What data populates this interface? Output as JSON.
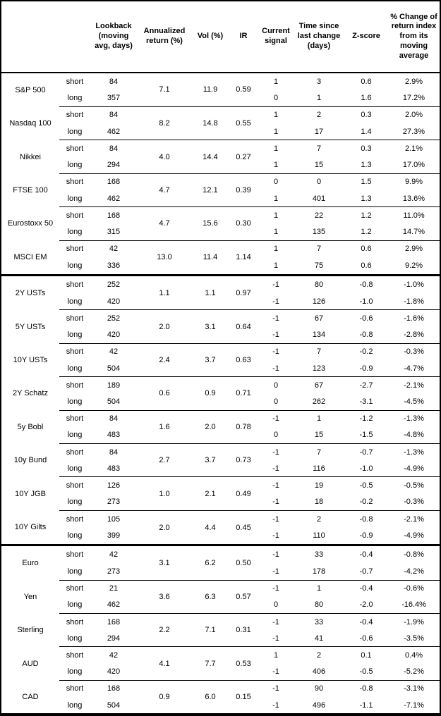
{
  "colors": {
    "border": "#000000",
    "text": "#000000",
    "background": "#ffffff"
  },
  "table": {
    "headers": {
      "asset": "",
      "side": "",
      "lookback": "Lookback\n(moving\navg, days)",
      "annualized_return": "Annualized\nreturn (%)",
      "vol": "Vol (%)",
      "ir": "IR",
      "current_signal": "Current\nsignal",
      "time_since": "Time since\nlast change\n(days)",
      "zscore": "Z-score",
      "pct_change": "% Change of\nreturn index\nfrom its\nmoving\naverage"
    },
    "sections": [
      {
        "groups": [
          {
            "asset": "S&P 500",
            "annualized_return": "7.1",
            "vol": "11.9",
            "ir": "0.59",
            "rows": [
              {
                "side": "short",
                "lookback": "84",
                "signal": "1",
                "time": "3",
                "zscore": "0.6",
                "pct": "2.9%"
              },
              {
                "side": "long",
                "lookback": "357",
                "signal": "0",
                "time": "1",
                "zscore": "1.6",
                "pct": "17.2%"
              }
            ]
          },
          {
            "asset": "Nasdaq 100",
            "annualized_return": "8.2",
            "vol": "14.8",
            "ir": "0.55",
            "rows": [
              {
                "side": "short",
                "lookback": "84",
                "signal": "1",
                "time": "2",
                "zscore": "0.3",
                "pct": "2.0%"
              },
              {
                "side": "long",
                "lookback": "462",
                "signal": "1",
                "time": "17",
                "zscore": "1.4",
                "pct": "27.3%"
              }
            ]
          },
          {
            "asset": "Nikkei",
            "annualized_return": "4.0",
            "vol": "14.4",
            "ir": "0.27",
            "rows": [
              {
                "side": "short",
                "lookback": "84",
                "signal": "1",
                "time": "7",
                "zscore": "0.3",
                "pct": "2.1%"
              },
              {
                "side": "long",
                "lookback": "294",
                "signal": "1",
                "time": "15",
                "zscore": "1.3",
                "pct": "17.0%"
              }
            ]
          },
          {
            "asset": "FTSE 100",
            "annualized_return": "4.7",
            "vol": "12.1",
            "ir": "0.39",
            "rows": [
              {
                "side": "short",
                "lookback": "168",
                "signal": "0",
                "time": "0",
                "zscore": "1.5",
                "pct": "9.9%"
              },
              {
                "side": "long",
                "lookback": "462",
                "signal": "1",
                "time": "401",
                "zscore": "1.3",
                "pct": "13.6%"
              }
            ]
          },
          {
            "asset": "Eurostoxx 50",
            "annualized_return": "4.7",
            "vol": "15.6",
            "ir": "0.30",
            "rows": [
              {
                "side": "short",
                "lookback": "168",
                "signal": "1",
                "time": "22",
                "zscore": "1.2",
                "pct": "11.0%"
              },
              {
                "side": "long",
                "lookback": "315",
                "signal": "1",
                "time": "135",
                "zscore": "1.2",
                "pct": "14.7%"
              }
            ]
          },
          {
            "asset": "MSCI EM",
            "annualized_return": "13.0",
            "vol": "11.4",
            "ir": "1.14",
            "rows": [
              {
                "side": "short",
                "lookback": "42",
                "signal": "1",
                "time": "7",
                "zscore": "0.6",
                "pct": "2.9%"
              },
              {
                "side": "long",
                "lookback": "336",
                "signal": "1",
                "time": "75",
                "zscore": "0.6",
                "pct": "9.2%"
              }
            ]
          }
        ]
      },
      {
        "groups": [
          {
            "asset": "2Y USTs",
            "annualized_return": "1.1",
            "vol": "1.1",
            "ir": "0.97",
            "rows": [
              {
                "side": "short",
                "lookback": "252",
                "signal": "-1",
                "time": "80",
                "zscore": "-0.8",
                "pct": "-1.0%"
              },
              {
                "side": "long",
                "lookback": "420",
                "signal": "-1",
                "time": "126",
                "zscore": "-1.0",
                "pct": "-1.8%"
              }
            ]
          },
          {
            "asset": "5Y USTs",
            "annualized_return": "2.0",
            "vol": "3.1",
            "ir": "0.64",
            "rows": [
              {
                "side": "short",
                "lookback": "252",
                "signal": "-1",
                "time": "67",
                "zscore": "-0.6",
                "pct": "-1.6%"
              },
              {
                "side": "long",
                "lookback": "420",
                "signal": "-1",
                "time": "134",
                "zscore": "-0.8",
                "pct": "-2.8%"
              }
            ]
          },
          {
            "asset": "10Y USTs",
            "annualized_return": "2.4",
            "vol": "3.7",
            "ir": "0.63",
            "rows": [
              {
                "side": "short",
                "lookback": "42",
                "signal": "-1",
                "time": "7",
                "zscore": "-0.2",
                "pct": "-0.3%"
              },
              {
                "side": "long",
                "lookback": "504",
                "signal": "-1",
                "time": "123",
                "zscore": "-0.9",
                "pct": "-4.7%"
              }
            ]
          },
          {
            "asset": "2Y Schatz",
            "annualized_return": "0.6",
            "vol": "0.9",
            "ir": "0.71",
            "rows": [
              {
                "side": "short",
                "lookback": "189",
                "signal": "0",
                "time": "67",
                "zscore": "-2.7",
                "pct": "-2.1%"
              },
              {
                "side": "long",
                "lookback": "504",
                "signal": "0",
                "time": "262",
                "zscore": "-3.1",
                "pct": "-4.5%"
              }
            ]
          },
          {
            "asset": "5y Bobl",
            "annualized_return": "1.6",
            "vol": "2.0",
            "ir": "0.78",
            "rows": [
              {
                "side": "short",
                "lookback": "84",
                "signal": "-1",
                "time": "1",
                "zscore": "-1.2",
                "pct": "-1.3%"
              },
              {
                "side": "long",
                "lookback": "483",
                "signal": "0",
                "time": "15",
                "zscore": "-1.5",
                "pct": "-4.8%"
              }
            ]
          },
          {
            "asset": "10y Bund",
            "annualized_return": "2.7",
            "vol": "3.7",
            "ir": "0.73",
            "rows": [
              {
                "side": "short",
                "lookback": "84",
                "signal": "-1",
                "time": "7",
                "zscore": "-0.7",
                "pct": "-1.3%"
              },
              {
                "side": "long",
                "lookback": "483",
                "signal": "-1",
                "time": "116",
                "zscore": "-1.0",
                "pct": "-4.9%"
              }
            ]
          },
          {
            "asset": "10Y JGB",
            "annualized_return": "1.0",
            "vol": "2.1",
            "ir": "0.49",
            "rows": [
              {
                "side": "short",
                "lookback": "126",
                "signal": "-1",
                "time": "19",
                "zscore": "-0.5",
                "pct": "-0.5%"
              },
              {
                "side": "long",
                "lookback": "273",
                "signal": "-1",
                "time": "18",
                "zscore": "-0.2",
                "pct": "-0.3%"
              }
            ]
          },
          {
            "asset": "10Y Gilts",
            "annualized_return": "2.0",
            "vol": "4.4",
            "ir": "0.45",
            "rows": [
              {
                "side": "short",
                "lookback": "105",
                "signal": "-1",
                "time": "2",
                "zscore": "-0.8",
                "pct": "-2.1%"
              },
              {
                "side": "long",
                "lookback": "399",
                "signal": "-1",
                "time": "110",
                "zscore": "-0.9",
                "pct": "-4.9%"
              }
            ]
          }
        ]
      },
      {
        "groups": [
          {
            "asset": "Euro",
            "annualized_return": "3.1",
            "vol": "6.2",
            "ir": "0.50",
            "rows": [
              {
                "side": "short",
                "lookback": "42",
                "signal": "-1",
                "time": "33",
                "zscore": "-0.4",
                "pct": "-0.8%"
              },
              {
                "side": "long",
                "lookback": "273",
                "signal": "-1",
                "time": "178",
                "zscore": "-0.7",
                "pct": "-4.2%"
              }
            ]
          },
          {
            "asset": "Yen",
            "annualized_return": "3.6",
            "vol": "6.3",
            "ir": "0.57",
            "rows": [
              {
                "side": "short",
                "lookback": "21",
                "signal": "-1",
                "time": "1",
                "zscore": "-0.4",
                "pct": "-0.6%"
              },
              {
                "side": "long",
                "lookback": "462",
                "signal": "0",
                "time": "80",
                "zscore": "-2.0",
                "pct": "-16.4%"
              }
            ]
          },
          {
            "asset": "Sterling",
            "annualized_return": "2.2",
            "vol": "7.1",
            "ir": "0.31",
            "rows": [
              {
                "side": "short",
                "lookback": "168",
                "signal": "-1",
                "time": "33",
                "zscore": "-0.4",
                "pct": "-1.9%"
              },
              {
                "side": "long",
                "lookback": "294",
                "signal": "-1",
                "time": "41",
                "zscore": "-0.6",
                "pct": "-3.5%"
              }
            ]
          },
          {
            "asset": "AUD",
            "annualized_return": "4.1",
            "vol": "7.7",
            "ir": "0.53",
            "rows": [
              {
                "side": "short",
                "lookback": "42",
                "signal": "1",
                "time": "2",
                "zscore": "0.1",
                "pct": "0.4%"
              },
              {
                "side": "long",
                "lookback": "420",
                "signal": "-1",
                "time": "406",
                "zscore": "-0.5",
                "pct": "-5.2%"
              }
            ]
          },
          {
            "asset": "CAD",
            "annualized_return": "0.9",
            "vol": "6.0",
            "ir": "0.15",
            "rows": [
              {
                "side": "short",
                "lookback": "168",
                "signal": "-1",
                "time": "90",
                "zscore": "-0.8",
                "pct": "-3.1%"
              },
              {
                "side": "long",
                "lookback": "504",
                "signal": "-1",
                "time": "496",
                "zscore": "-1.1",
                "pct": "-7.1%"
              }
            ]
          }
        ]
      }
    ]
  }
}
